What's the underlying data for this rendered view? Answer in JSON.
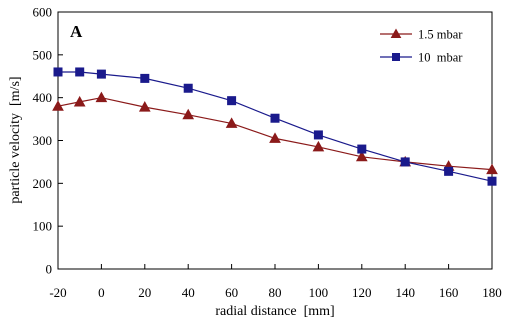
{
  "chart_data": {
    "type": "line",
    "panel_label": "A",
    "xlabel": "radial distance  [mm]",
    "ylabel": "particle velocity  [m/s]",
    "xlim": [
      -20,
      180
    ],
    "ylim": [
      0,
      600
    ],
    "xticks": [
      -20,
      0,
      20,
      40,
      60,
      80,
      100,
      120,
      140,
      160,
      180
    ],
    "yticks": [
      0,
      100,
      200,
      300,
      400,
      500,
      600
    ],
    "grid": false,
    "legend_position": "top-right",
    "series": [
      {
        "name": "1.5 mbar",
        "marker": "triangle",
        "color": "#8b1a1a",
        "x": [
          -20,
          -10,
          0,
          20,
          40,
          60,
          80,
          100,
          120,
          140,
          160,
          180
        ],
        "y": [
          380,
          390,
          400,
          378,
          360,
          340,
          305,
          285,
          262,
          250,
          240,
          232
        ]
      },
      {
        "name": "10  mbar",
        "marker": "square",
        "color": "#1a1a8c",
        "x": [
          -20,
          -10,
          0,
          20,
          40,
          60,
          80,
          100,
          120,
          140,
          160,
          180
        ],
        "y": [
          460,
          460,
          455,
          445,
          422,
          393,
          352,
          313,
          280,
          250,
          228,
          205
        ]
      }
    ]
  }
}
